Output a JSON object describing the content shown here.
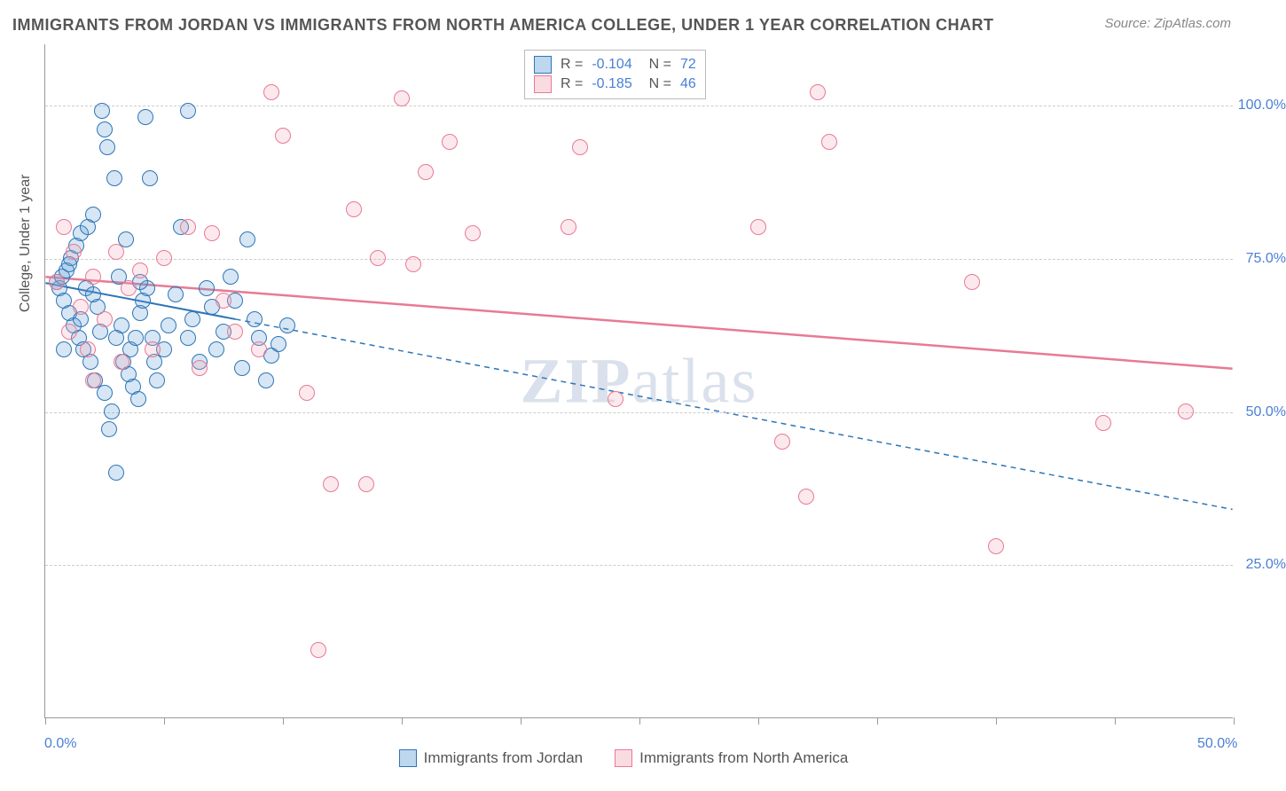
{
  "title": "IMMIGRANTS FROM JORDAN VS IMMIGRANTS FROM NORTH AMERICA COLLEGE, UNDER 1 YEAR CORRELATION CHART",
  "source": "Source: ZipAtlas.com",
  "ylabel": "College, Under 1 year",
  "watermark_a": "ZIP",
  "watermark_b": "atlas",
  "chart": {
    "type": "scatter",
    "background_color": "#ffffff",
    "grid_color": "#cccccc",
    "axis_color": "#999999",
    "label_color": "#555555",
    "tick_label_color": "#4a7fd6",
    "title_fontsize": 18,
    "label_fontsize": 16,
    "tick_fontsize": 16,
    "xlim": [
      0,
      50
    ],
    "ylim": [
      0,
      110
    ],
    "xticks": [
      0,
      5,
      10,
      15,
      20,
      25,
      30,
      35,
      40,
      45,
      50
    ],
    "xtick_labels": {
      "0": "0.0%",
      "50": "50.0%"
    },
    "yticks": [
      25,
      50,
      75,
      100
    ],
    "ytick_labels": {
      "25": "25.0%",
      "50": "50.0%",
      "75": "75.0%",
      "100": "100.0%"
    },
    "marker_radius": 9,
    "marker_stroke_width": 1.5,
    "marker_fill_opacity": 0.25,
    "series": [
      {
        "name": "Immigrants from Jordan",
        "color": "#5b9bd5",
        "stroke": "#2e75b6",
        "R": "-0.104",
        "N": "72",
        "trend": {
          "x1": 0,
          "y1": 71,
          "x2": 50,
          "y2": 34,
          "solid_until_x": 8,
          "width": 2
        },
        "points": [
          [
            0.5,
            71
          ],
          [
            0.6,
            70
          ],
          [
            0.7,
            72
          ],
          [
            0.8,
            68
          ],
          [
            0.9,
            73
          ],
          [
            1.0,
            66
          ],
          [
            1.1,
            75
          ],
          [
            1.2,
            64
          ],
          [
            1.3,
            77
          ],
          [
            1.4,
            62
          ],
          [
            1.5,
            79
          ],
          [
            1.6,
            60
          ],
          [
            1.7,
            70
          ],
          [
            1.8,
            80
          ],
          [
            1.9,
            58
          ],
          [
            2.0,
            82
          ],
          [
            2.1,
            55
          ],
          [
            2.2,
            67
          ],
          [
            2.3,
            63
          ],
          [
            2.4,
            99
          ],
          [
            2.5,
            96
          ],
          [
            2.6,
            93
          ],
          [
            2.7,
            47
          ],
          [
            2.8,
            50
          ],
          [
            2.9,
            88
          ],
          [
            3.0,
            40
          ],
          [
            3.1,
            72
          ],
          [
            3.2,
            64
          ],
          [
            3.3,
            58
          ],
          [
            3.4,
            78
          ],
          [
            3.5,
            56
          ],
          [
            3.6,
            60
          ],
          [
            3.7,
            54
          ],
          [
            3.8,
            62
          ],
          [
            3.9,
            52
          ],
          [
            4.0,
            66
          ],
          [
            4.1,
            68
          ],
          [
            4.2,
            98
          ],
          [
            4.3,
            70
          ],
          [
            4.4,
            88
          ],
          [
            4.5,
            62
          ],
          [
            4.6,
            58
          ],
          [
            4.7,
            55
          ],
          [
            5.0,
            60
          ],
          [
            5.2,
            64
          ],
          [
            5.5,
            69
          ],
          [
            5.7,
            80
          ],
          [
            6.0,
            62
          ],
          [
            6.2,
            65
          ],
          [
            6.5,
            58
          ],
          [
            6.8,
            70
          ],
          [
            7.0,
            67
          ],
          [
            7.2,
            60
          ],
          [
            7.5,
            63
          ],
          [
            7.8,
            72
          ],
          [
            8.0,
            68
          ],
          [
            8.3,
            57
          ],
          [
            8.5,
            78
          ],
          [
            8.8,
            65
          ],
          [
            9.0,
            62
          ],
          [
            9.3,
            55
          ],
          [
            9.5,
            59
          ],
          [
            9.8,
            61
          ],
          [
            10.2,
            64
          ],
          [
            6.0,
            99
          ],
          [
            3.0,
            62
          ],
          [
            2.0,
            69
          ],
          [
            1.0,
            74
          ],
          [
            1.5,
            65
          ],
          [
            0.8,
            60
          ],
          [
            2.5,
            53
          ],
          [
            4.0,
            71
          ]
        ]
      },
      {
        "name": "Immigrants from North America",
        "color": "#f4a6b7",
        "stroke": "#e87a94",
        "R": "-0.185",
        "N": "46",
        "trend": {
          "x1": 0,
          "y1": 72,
          "x2": 50,
          "y2": 57,
          "solid_until_x": 50,
          "width": 2.5
        },
        "points": [
          [
            0.8,
            80
          ],
          [
            1.2,
            76
          ],
          [
            1.5,
            67
          ],
          [
            2.0,
            72
          ],
          [
            2.5,
            65
          ],
          [
            3.0,
            76
          ],
          [
            3.5,
            70
          ],
          [
            4.0,
            73
          ],
          [
            5.0,
            75
          ],
          [
            6.0,
            80
          ],
          [
            7.0,
            79
          ],
          [
            7.5,
            68
          ],
          [
            8.0,
            63
          ],
          [
            9.0,
            60
          ],
          [
            9.5,
            102
          ],
          [
            10.0,
            95
          ],
          [
            11.0,
            53
          ],
          [
            11.5,
            11
          ],
          [
            12.0,
            38
          ],
          [
            13.0,
            83
          ],
          [
            13.5,
            38
          ],
          [
            14.0,
            75
          ],
          [
            15.0,
            101
          ],
          [
            15.5,
            74
          ],
          [
            16.0,
            89
          ],
          [
            17.0,
            94
          ],
          [
            18.0,
            79
          ],
          [
            22.0,
            80
          ],
          [
            22.5,
            93
          ],
          [
            24.0,
            52
          ],
          [
            30.0,
            80
          ],
          [
            31.0,
            45
          ],
          [
            32.0,
            36
          ],
          [
            32.5,
            102
          ],
          [
            33.0,
            94
          ],
          [
            39.0,
            71
          ],
          [
            40.0,
            28
          ],
          [
            44.5,
            48
          ],
          [
            48.0,
            50
          ],
          [
            3.2,
            58
          ],
          [
            2.0,
            55
          ],
          [
            1.0,
            63
          ],
          [
            4.5,
            60
          ],
          [
            6.5,
            57
          ],
          [
            0.5,
            71
          ],
          [
            1.8,
            60
          ]
        ]
      }
    ]
  },
  "bottom_legend": [
    {
      "color": "#5b9bd5",
      "stroke": "#2e75b6",
      "label": "Immigrants from Jordan"
    },
    {
      "color": "#f4a6b7",
      "stroke": "#e87a94",
      "label": "Immigrants from North America"
    }
  ]
}
